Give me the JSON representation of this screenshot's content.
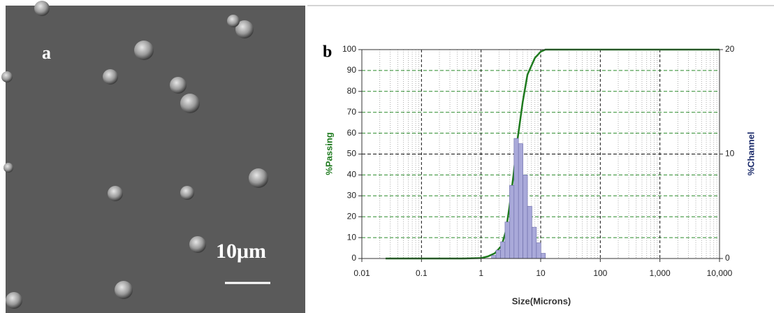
{
  "panel_a": {
    "label": "a",
    "scale_bar": "10μm"
  },
  "chart_data": {
    "type": "combo",
    "panel_label": "b",
    "x_label": "Size(Microns)",
    "y_label": "%Passing",
    "y2_label": "%Channel",
    "xscale": "log",
    "xlim": [
      0.01,
      10000
    ],
    "xticks": [
      0.01,
      0.1,
      1,
      10,
      100,
      {
        "value": 1000,
        "label": "1,000"
      },
      {
        "value": 10000,
        "label": "10,000"
      }
    ],
    "ylim": [
      0,
      100
    ],
    "yticks": [
      0,
      10,
      20,
      30,
      40,
      50,
      60,
      70,
      80,
      90,
      100
    ],
    "y2lim": [
      0,
      20
    ],
    "y2ticks": [
      0,
      10,
      20
    ],
    "grid": true,
    "minor_grid": true,
    "series": [
      {
        "type": "line",
        "color": "#1e7a1e",
        "x": [
          0.025,
          0.5,
          1,
          1.3,
          1.7,
          2.2,
          2.6,
          3,
          3.5,
          4,
          5,
          6,
          8,
          10,
          12,
          15,
          10000
        ],
        "values": [
          0,
          0,
          0.2,
          1,
          2.5,
          6,
          13,
          25,
          40,
          55,
          75,
          88,
          96,
          99,
          100,
          100,
          100
        ]
      },
      {
        "type": "histogram",
        "axis": "y2",
        "color": "#a9a9d9",
        "bins": [
          1.5,
          1.78,
          2.12,
          2.52,
          3.0,
          3.57,
          4.24,
          5.04,
          6.0,
          7.13,
          8.48,
          10.09,
          12.0
        ],
        "values": [
          0.3,
          0.8,
          1.6,
          3.5,
          7,
          11.5,
          11,
          8,
          5,
          3,
          1.5,
          0.5
        ]
      }
    ]
  }
}
